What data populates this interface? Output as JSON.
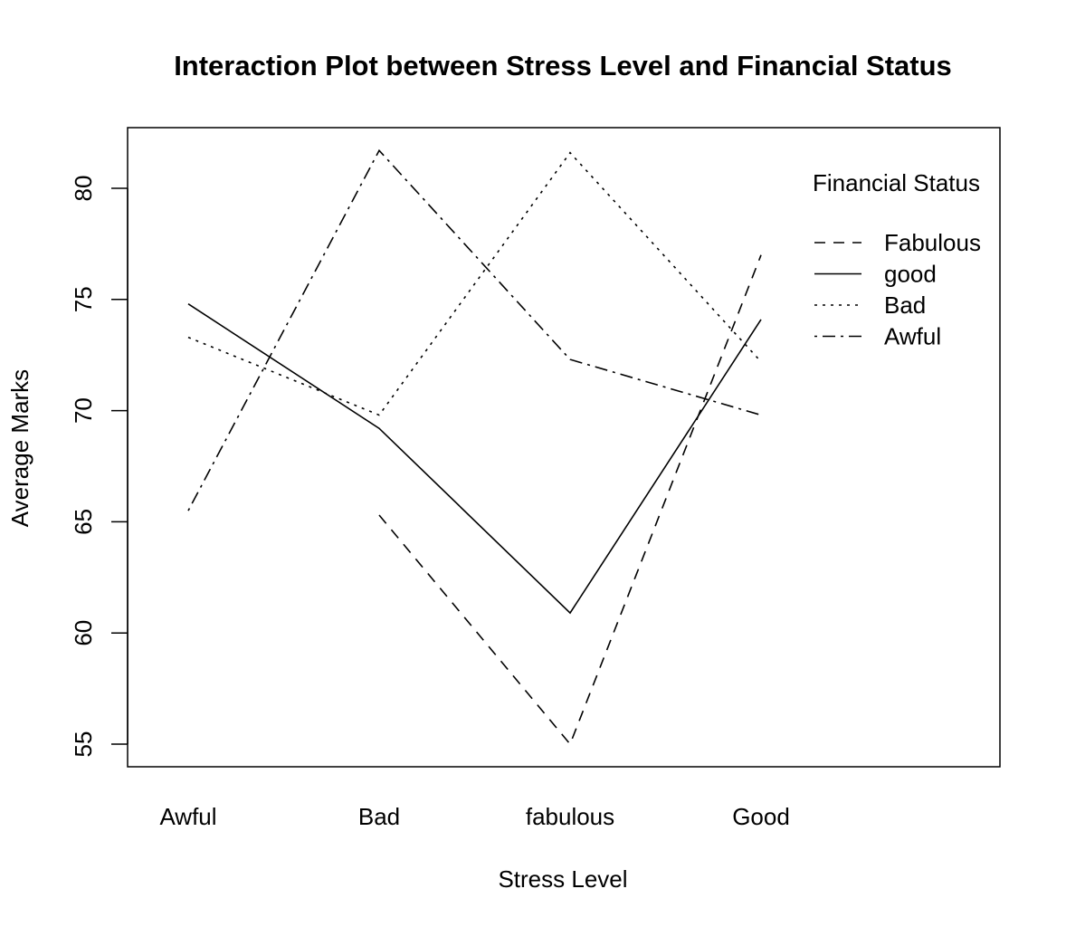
{
  "chart_data": {
    "type": "line",
    "title": "Interaction Plot between Stress Level and Financial Status",
    "xlabel": "Stress Level",
    "ylabel": "Average Marks",
    "categories": [
      "Awful",
      "Bad",
      "fabulous",
      "Good"
    ],
    "yticks": [
      55,
      60,
      65,
      70,
      75,
      80
    ],
    "ylim": [
      53.9,
      82.8
    ],
    "legend": {
      "title": "Financial Status",
      "position": "top-right"
    },
    "series": [
      {
        "name": "Fabulous",
        "dash": "dashed",
        "values": [
          null,
          65.3,
          55.0,
          77.0
        ]
      },
      {
        "name": "good",
        "dash": "solid",
        "values": [
          74.8,
          69.2,
          60.9,
          74.1
        ]
      },
      {
        "name": "Bad",
        "dash": "dotted",
        "values": [
          73.3,
          69.8,
          81.6,
          72.2
        ]
      },
      {
        "name": "Awful",
        "dash": "dotdash",
        "values": [
          65.5,
          81.7,
          72.3,
          69.8
        ]
      }
    ]
  }
}
